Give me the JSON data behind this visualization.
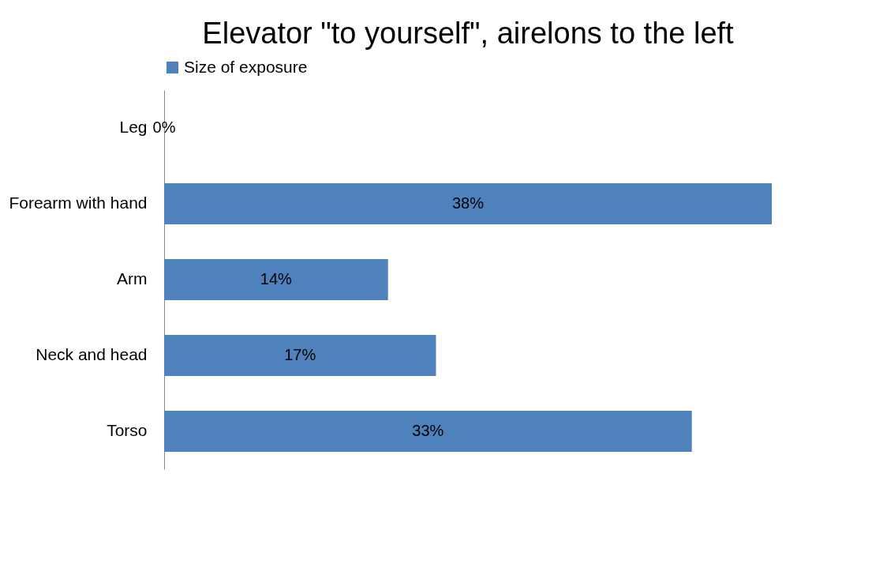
{
  "chart_data": {
    "type": "bar",
    "orientation": "horizontal",
    "title": "Elevator \"to yourself\", airelons to the left",
    "categories": [
      "Leg",
      "Forearm with hand",
      "Arm",
      "Neck and head",
      "Torso"
    ],
    "series": [
      {
        "name": "Size of exposure",
        "color": "#4f81bd",
        "values": [
          0,
          38,
          14,
          17,
          33
        ],
        "value_labels": [
          "0%",
          "38%",
          "14%",
          "17%",
          "33%"
        ]
      }
    ],
    "legend": "top",
    "grid": false
  }
}
